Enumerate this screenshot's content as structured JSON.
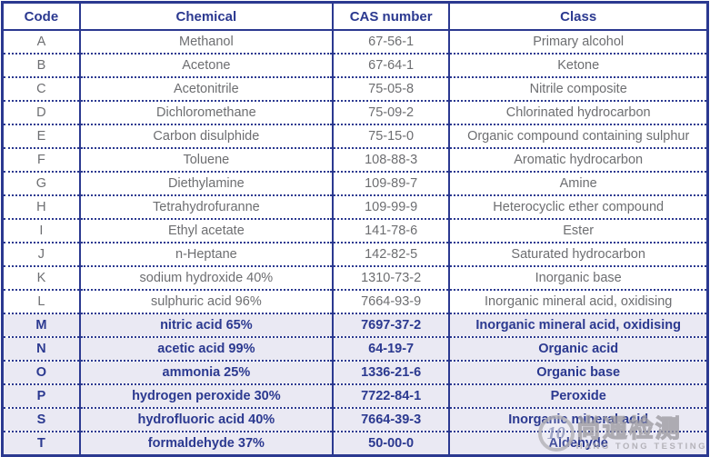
{
  "colors": {
    "navy": "#2b3990",
    "gray_text": "#6d6e71",
    "highlight_bg": "#eae9f3",
    "watermark_gray": "#a7a5ab"
  },
  "table": {
    "columns": [
      "Code",
      "Chemical",
      "CAS number",
      "Class"
    ],
    "rows": [
      {
        "code": "A",
        "chemical": "Methanol",
        "cas": "67-56-1",
        "class": "Primary alcohol"
      },
      {
        "code": "B",
        "chemical": "Acetone",
        "cas": "67-64-1",
        "class": "Ketone"
      },
      {
        "code": "C",
        "chemical": "Acetonitrile",
        "cas": "75-05-8",
        "class": "Nitrile composite"
      },
      {
        "code": "D",
        "chemical": "Dichloromethane",
        "cas": "75-09-2",
        "class": "Chlorinated hydrocarbon"
      },
      {
        "code": "E",
        "chemical": "Carbon disulphide",
        "cas": "75-15-0",
        "class": "Organic compound containing sulphur"
      },
      {
        "code": "F",
        "chemical": "Toluene",
        "cas": "108-88-3",
        "class": "Aromatic hydrocarbon"
      },
      {
        "code": "G",
        "chemical": "Diethylamine",
        "cas": "109-89-7",
        "class": "Amine"
      },
      {
        "code": "H",
        "chemical": "Tetrahydrofuranne",
        "cas": "109-99-9",
        "class": "Heterocyclic ether compound"
      },
      {
        "code": "I",
        "chemical": "Ethyl acetate",
        "cas": "141-78-6",
        "class": "Ester"
      },
      {
        "code": "J",
        "chemical": "n-Heptane",
        "cas": "142-82-5",
        "class": "Saturated hydrocarbon"
      },
      {
        "code": "K",
        "chemical": "sodium hydroxide 40%",
        "cas": "1310-73-2",
        "class": "Inorganic base"
      },
      {
        "code": "L",
        "chemical": "sulphuric acid 96%",
        "cas": "7664-93-9",
        "class": "Inorganic mineral acid, oxidising"
      },
      {
        "code": "M",
        "chemical": "nitric acid 65%",
        "cas": "7697-37-2",
        "class": "Inorganic mineral acid, oxidising",
        "highlighted": true
      },
      {
        "code": "N",
        "chemical": "acetic acid 99%",
        "cas": "64-19-7",
        "class": "Organic acid",
        "highlighted": true
      },
      {
        "code": "O",
        "chemical": "ammonia 25%",
        "cas": "1336-21-6",
        "class": "Organic base",
        "highlighted": true
      },
      {
        "code": "P",
        "chemical": "hydrogen peroxide 30%",
        "cas": "7722-84-1",
        "class": "Peroxide",
        "highlighted": true
      },
      {
        "code": "S",
        "chemical": "hydrofluoric acid 40%",
        "cas": "7664-39-3",
        "class": "Inorganic mineral acid",
        "highlighted": true
      },
      {
        "code": "T",
        "chemical": "formaldehyde 37%",
        "cas": "50-00-0",
        "class": "Aldehyde",
        "highlighted": true
      }
    ]
  },
  "watermark": {
    "badge": "10",
    "cjk": "尚通检测",
    "latin": "HANG TONG TESTING"
  }
}
